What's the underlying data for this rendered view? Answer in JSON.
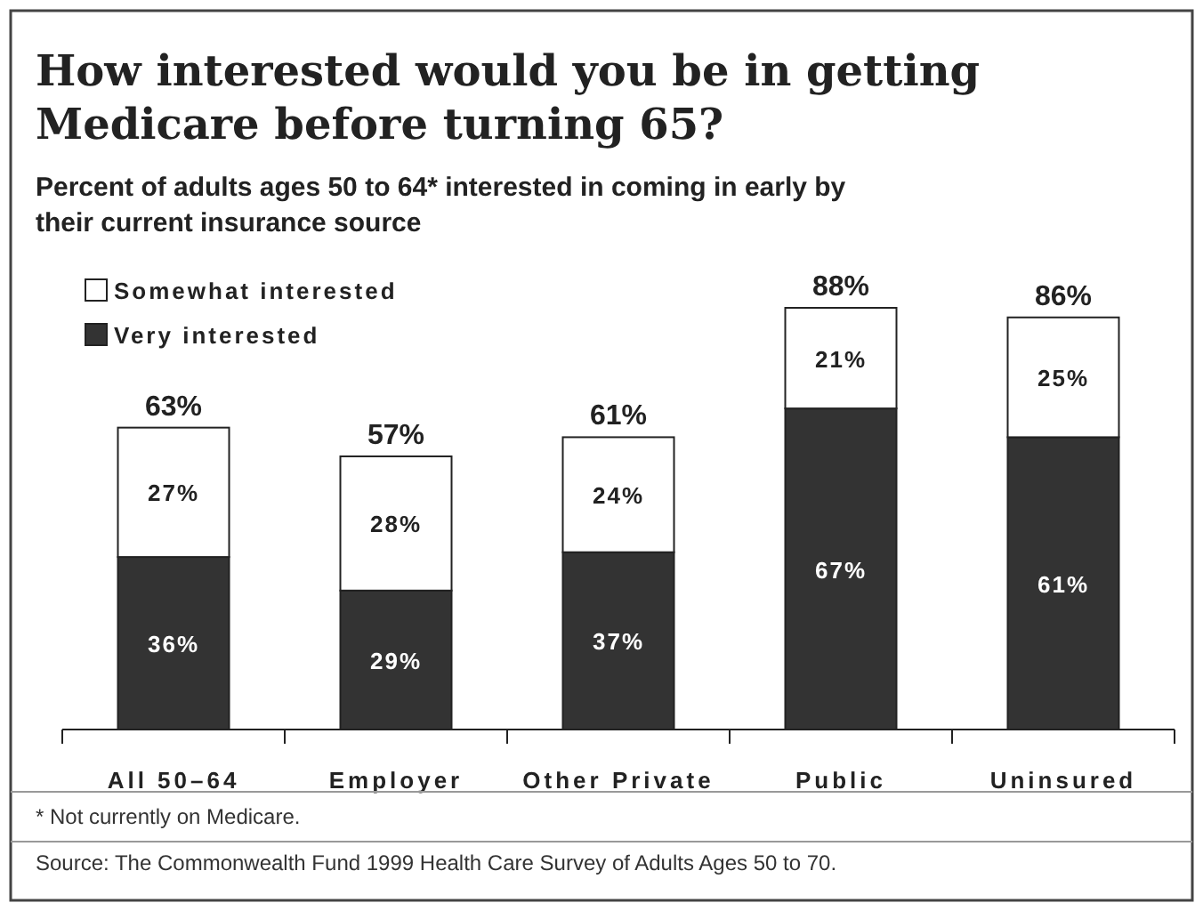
{
  "chart_data": {
    "type": "bar",
    "title": "How interested would you be in getting Medicare before turning 65?",
    "subtitle": "Percent of adults ages 50 to 64* interested in coming in early by their current insurance source",
    "categories": [
      "All 50–64",
      "Employer",
      "Other Private",
      "Public",
      "Uninsured"
    ],
    "series": [
      {
        "name": "Very interested",
        "color": "#333333",
        "values": [
          36,
          29,
          37,
          67,
          61
        ],
        "value_labels": [
          "36%",
          "29%",
          "37%",
          "67%",
          "61%"
        ]
      },
      {
        "name": "Somewhat interested",
        "color": "#ffffff",
        "values": [
          27,
          28,
          24,
          21,
          25
        ],
        "value_labels": [
          "27%",
          "28%",
          "24%",
          "21%",
          "25%"
        ]
      }
    ],
    "stacked": true,
    "totals": [
      "63%",
      "57%",
      "61%",
      "88%",
      "86%"
    ],
    "legend": "top left",
    "grid": false,
    "annotations": [
      "* Not currently on Medicare.",
      "Source: The Commonwealth Fund 1999 Health Care Survey of Adults Ages 50 to 70."
    ]
  }
}
